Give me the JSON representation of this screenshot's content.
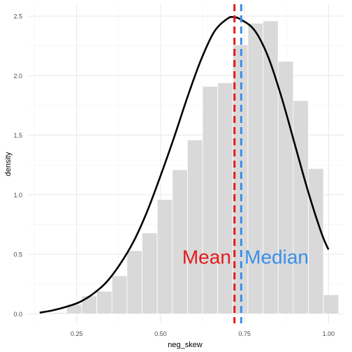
{
  "chart_data": {
    "type": "bar",
    "title": "",
    "xlabel": "neg_skew",
    "ylabel": "density",
    "xlim": [
      0.105,
      1.045
    ],
    "ylim": [
      -0.08,
      2.6
    ],
    "x_ticks": [
      0.25,
      0.5,
      0.75,
      1.0
    ],
    "x_tick_labels": [
      "0.25",
      "0.50",
      "0.75",
      "1.00"
    ],
    "y_ticks": [
      0.0,
      0.5,
      1.0,
      1.5,
      2.0,
      2.5
    ],
    "y_tick_labels": [
      "0.0",
      "0.5",
      "1.0",
      "1.5",
      "2.0",
      "2.5"
    ],
    "grid": true,
    "histogram": {
      "bin_width": 0.045,
      "bin_starts": [
        0.175,
        0.22,
        0.265,
        0.31,
        0.355,
        0.4,
        0.445,
        0.49,
        0.535,
        0.58,
        0.625,
        0.67,
        0.715,
        0.76,
        0.805,
        0.85,
        0.895,
        0.94,
        0.985
      ],
      "values": [
        0.01,
        0.08,
        0.15,
        0.19,
        0.32,
        0.53,
        0.68,
        0.96,
        1.21,
        1.46,
        1.91,
        1.94,
        2.26,
        2.44,
        2.46,
        2.12,
        1.79,
        1.22,
        0.16
      ],
      "fill": "#d9d9d9",
      "outline": "#ffffff"
    },
    "density_curve": {
      "x": [
        0.14,
        0.18,
        0.22,
        0.26,
        0.3,
        0.34,
        0.38,
        0.42,
        0.46,
        0.5,
        0.54,
        0.58,
        0.62,
        0.66,
        0.7,
        0.72,
        0.74,
        0.78,
        0.82,
        0.86,
        0.9,
        0.94,
        0.98,
        1.0
      ],
      "y": [
        0.01,
        0.03,
        0.06,
        0.1,
        0.17,
        0.27,
        0.42,
        0.61,
        0.86,
        1.16,
        1.48,
        1.82,
        2.13,
        2.37,
        2.48,
        2.49,
        2.47,
        2.38,
        2.16,
        1.82,
        1.42,
        1.02,
        0.67,
        0.54
      ],
      "color": "#000000"
    },
    "reference_lines": [
      {
        "label": "Mean",
        "x": 0.72,
        "color": "#e41a1c"
      },
      {
        "label": "Median",
        "x": 0.74,
        "color": "#3a8eea"
      }
    ],
    "annotations": [
      {
        "text": "Mean",
        "x": 0.71,
        "y": 0.48,
        "anchor": "end",
        "color": "#e41a1c"
      },
      {
        "text": "Median",
        "x": 0.75,
        "y": 0.48,
        "anchor": "start",
        "color": "#3a8eea"
      }
    ]
  }
}
